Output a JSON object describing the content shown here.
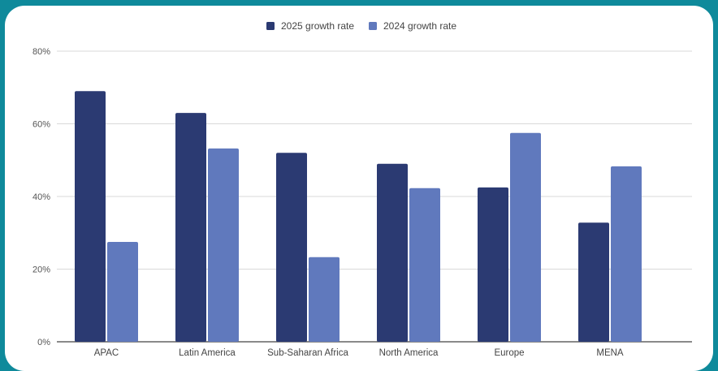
{
  "chart_data": {
    "type": "bar",
    "title": "",
    "xlabel": "",
    "ylabel": "",
    "categories": [
      "APAC",
      "Latin America",
      "Sub-Saharan Africa",
      "North America",
      "Europe",
      "MENA"
    ],
    "series": [
      {
        "name": "2025 growth rate",
        "color": "#2b3a72",
        "values": [
          69,
          63,
          52,
          49,
          42.5,
          32.8
        ]
      },
      {
        "name": "2024 growth rate",
        "color": "#6079bd",
        "values": [
          27.5,
          53.2,
          23.3,
          42.3,
          57.5,
          48.3
        ]
      }
    ],
    "ylim": [
      0,
      80
    ],
    "yticks": [
      0,
      20,
      40,
      60,
      80
    ],
    "ytick_labels": [
      "0%",
      "20%",
      "40%",
      "60%",
      "80%"
    ],
    "grid": true,
    "legend_position": "top-center"
  },
  "colors": {
    "background": "#0f8a9b",
    "panel": "#ffffff",
    "grid": "#d9d9d9",
    "axis": "#444444"
  }
}
